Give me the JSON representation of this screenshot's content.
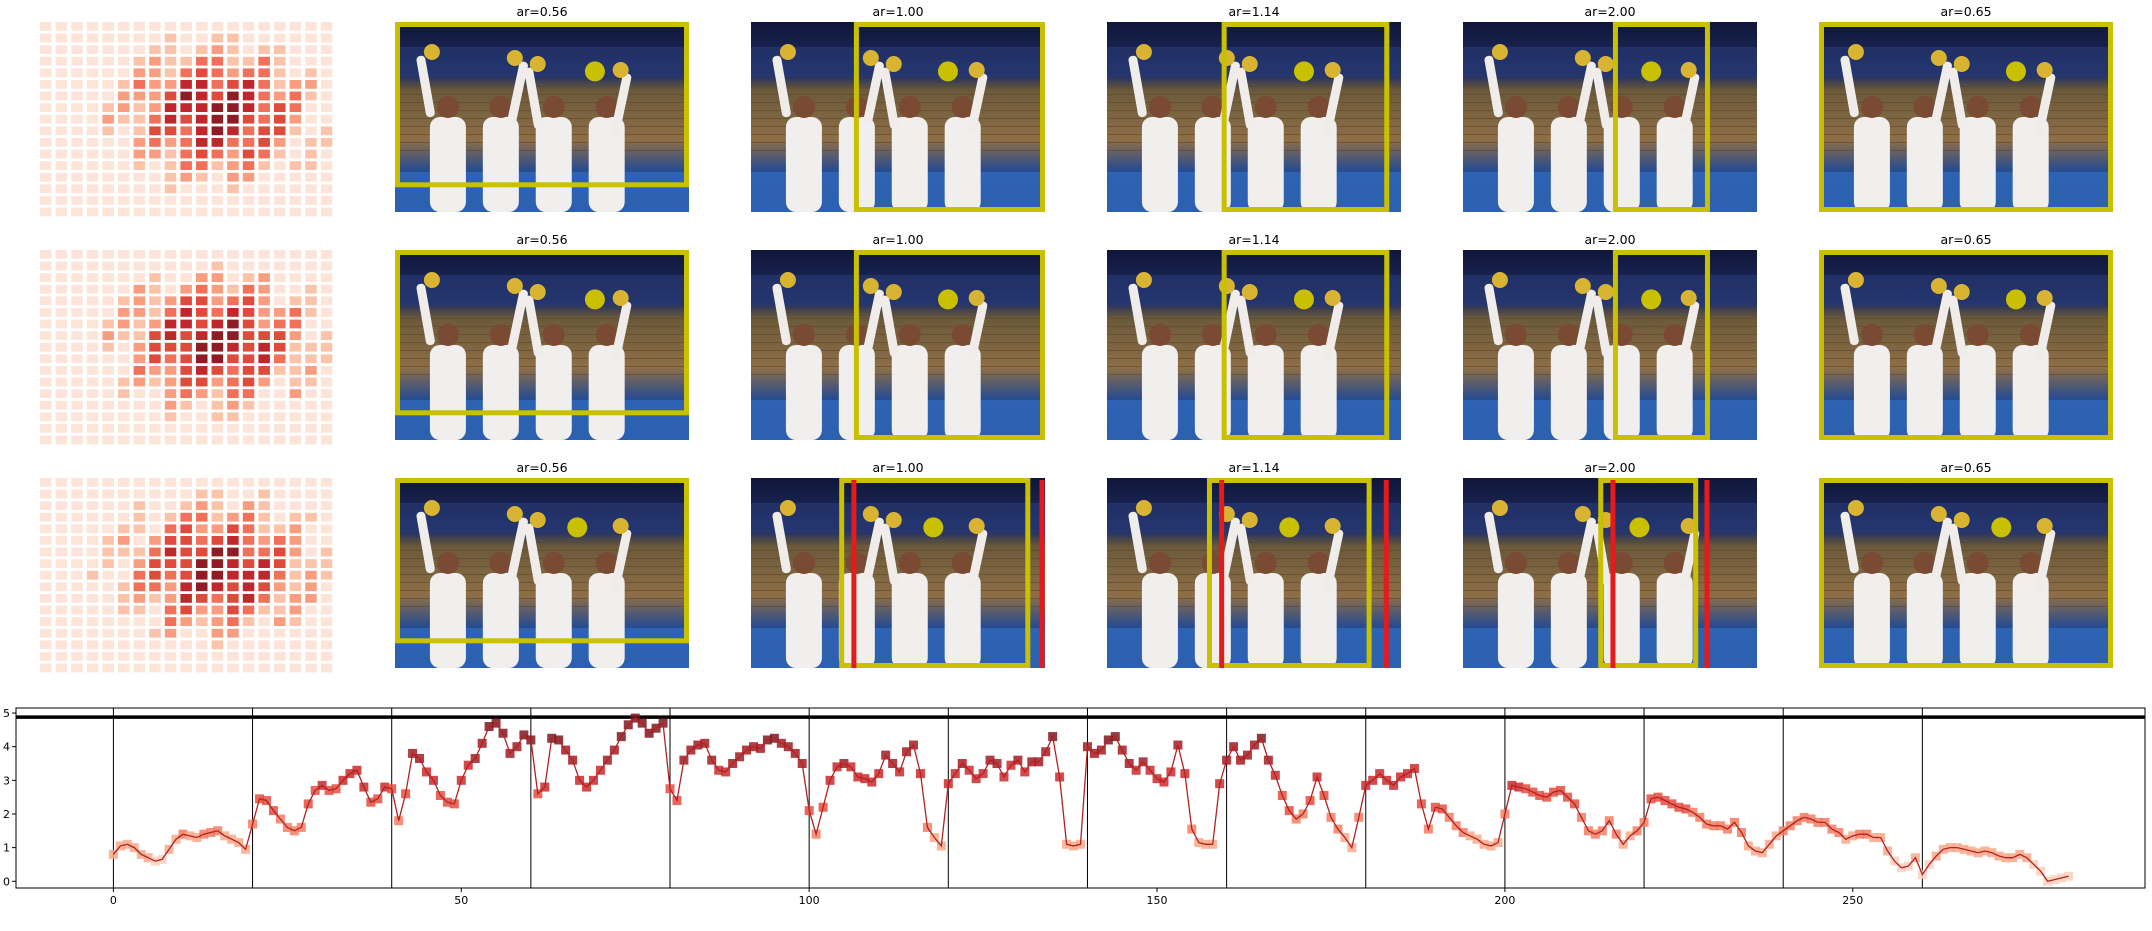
{
  "figure": {
    "rows": 3,
    "crop_panels": [
      {
        "label": "ar=0.56"
      },
      {
        "label": "ar=1.00"
      },
      {
        "label": "ar=1.14"
      },
      {
        "label": "ar=2.00"
      },
      {
        "label": "ar=0.65"
      }
    ],
    "colors": {
      "crop_box": "#c8c000",
      "alt_crop_box": "#e41a1c",
      "saliency_point": "#c8c000",
      "line": "#b22222"
    }
  },
  "chart_data": {
    "type": "line",
    "xlabel": "",
    "ylabel": "",
    "xlim": [
      -14,
      292
    ],
    "ylim": [
      -0.2,
      5.15
    ],
    "xticks": [
      "0",
      "50",
      "100",
      "150",
      "200",
      "250"
    ],
    "yticks": [
      "0",
      "1",
      "2",
      "3",
      "4",
      "5"
    ],
    "segment_boundaries": [
      0,
      20,
      40,
      60,
      80,
      100,
      120,
      140,
      160,
      180,
      200,
      220,
      240,
      260
    ],
    "reference_line": 4.88,
    "grid": false,
    "series": [
      {
        "values": [
          0.8,
          1.05,
          1.1,
          1.0,
          0.8,
          0.7,
          0.6,
          0.65,
          0.95,
          1.25,
          1.4,
          1.35,
          1.3,
          1.4,
          1.45,
          1.5,
          1.35,
          1.25,
          1.15,
          0.95,
          1.7,
          2.45,
          2.4,
          2.1,
          1.85,
          1.6,
          1.5,
          1.6,
          2.3,
          2.7,
          2.85,
          2.7,
          2.75,
          3.0,
          3.2,
          3.3,
          2.8,
          2.35,
          2.45,
          2.8,
          2.75,
          1.8,
          2.6,
          3.8,
          3.65,
          3.25,
          3.0,
          2.55,
          2.35,
          2.3,
          3.0,
          3.45,
          3.65,
          4.1,
          4.6,
          4.7,
          4.4,
          3.8,
          4.0,
          4.35,
          4.2,
          2.6,
          2.8,
          4.25,
          4.2,
          3.9,
          3.6,
          3.0,
          2.8,
          3.0,
          3.3,
          3.6,
          3.9,
          4.3,
          4.65,
          4.85,
          4.7,
          4.4,
          4.55,
          4.7,
          2.75,
          2.4,
          3.6,
          3.9,
          4.05,
          4.1,
          3.6,
          3.3,
          3.25,
          3.5,
          3.7,
          3.9,
          4.0,
          3.95,
          4.2,
          4.25,
          4.1,
          4.0,
          3.8,
          3.5,
          2.1,
          1.4,
          2.2,
          3.0,
          3.4,
          3.5,
          3.4,
          3.1,
          3.05,
          2.95,
          3.2,
          3.75,
          3.5,
          3.25,
          3.85,
          4.05,
          3.2,
          1.6,
          1.3,
          1.05,
          2.9,
          3.2,
          3.5,
          3.3,
          3.05,
          3.2,
          3.6,
          3.5,
          3.1,
          3.45,
          3.6,
          3.25,
          3.55,
          3.55,
          3.85,
          4.3,
          3.1,
          1.1,
          1.05,
          1.1,
          4.0,
          3.8,
          3.9,
          4.2,
          4.3,
          3.9,
          3.5,
          3.3,
          3.55,
          3.3,
          3.05,
          2.95,
          3.25,
          4.05,
          3.2,
          1.55,
          1.15,
          1.1,
          1.1,
          2.9,
          3.6,
          4.0,
          3.6,
          3.75,
          4.05,
          4.25,
          3.6,
          3.15,
          2.55,
          2.1,
          1.85,
          2.0,
          2.4,
          3.1,
          2.55,
          1.9,
          1.55,
          1.3,
          1.0,
          1.9,
          2.85,
          3.0,
          3.2,
          3.0,
          2.85,
          3.1,
          3.2,
          3.35,
          2.3,
          1.55,
          2.2,
          2.15,
          1.9,
          1.65,
          1.45,
          1.35,
          1.25,
          1.1,
          1.05,
          1.15,
          2.0,
          2.85,
          2.8,
          2.75,
          2.65,
          2.55,
          2.5,
          2.65,
          2.7,
          2.5,
          2.3,
          1.9,
          1.5,
          1.4,
          1.5,
          1.8,
          1.4,
          1.1,
          1.35,
          1.5,
          1.75,
          2.45,
          2.5,
          2.4,
          2.3,
          2.2,
          2.15,
          2.05,
          1.9,
          1.7,
          1.65,
          1.65,
          1.55,
          1.75,
          1.45,
          1.05,
          0.9,
          0.85,
          1.1,
          1.35,
          1.5,
          1.65,
          1.8,
          1.9,
          1.85,
          1.75,
          1.75,
          1.55,
          1.45,
          1.25,
          1.35,
          1.4,
          1.4,
          1.3,
          1.3,
          0.9,
          0.6,
          0.4,
          0.45,
          0.7,
          0.2,
          0.5,
          0.75,
          0.95,
          1.0,
          1.0,
          0.95,
          0.9,
          0.85,
          0.9,
          0.85,
          0.75,
          0.7,
          0.7,
          0.8,
          0.7,
          0.5,
          0.3,
          0.0,
          0.05,
          0.1,
          0.15
        ]
      }
    ]
  }
}
